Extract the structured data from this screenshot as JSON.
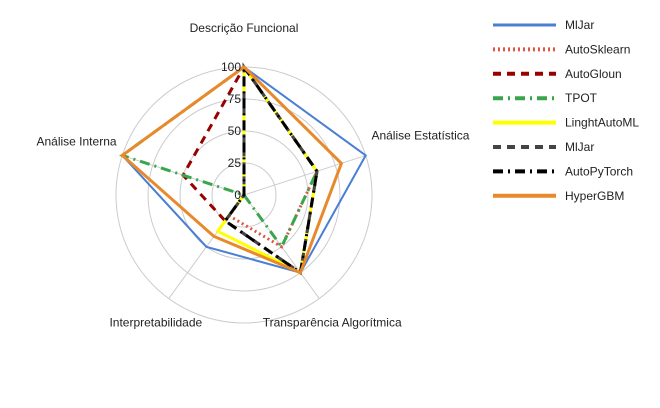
{
  "chart_data": {
    "type": "radar",
    "title": "",
    "axes": [
      "Descrição Funcional",
      "Análise Estatística",
      "Transparência Algorítmica",
      "Interpretabilidade",
      "Análise Interna"
    ],
    "rlim": [
      0,
      100
    ],
    "ticks": [
      0,
      25,
      50,
      75,
      100
    ],
    "grid": true,
    "legend_position": "right",
    "series": [
      {
        "name": "MlJar",
        "values": [
          100,
          100,
          75,
          50,
          100
        ],
        "color": "#4a7fd4",
        "dash": "solid",
        "width": 2
      },
      {
        "name": "AutoSklearn",
        "values": [
          100,
          60,
          50,
          20,
          0
        ],
        "color": "#e05545",
        "dash": "dot",
        "width": 3
      },
      {
        "name": "AutoGloun",
        "values": [
          100,
          60,
          75,
          25,
          50
        ],
        "color": "#990000",
        "dash": "dash",
        "width": 3
      },
      {
        "name": "TPOT",
        "values": [
          100,
          60,
          50,
          0,
          100
        ],
        "color": "#3aa64c",
        "dash": "dashdot",
        "width": 3
      },
      {
        "name": "LinghtAutoML",
        "values": [
          100,
          60,
          75,
          35,
          0
        ],
        "color": "#ffff00",
        "dash": "solid",
        "width": 3
      },
      {
        "name": "MlJar",
        "values": [
          100,
          60,
          75,
          25,
          0
        ],
        "color": "#444444",
        "dash": "dash",
        "width": 3
      },
      {
        "name": "AutoPyTorch",
        "values": [
          100,
          60,
          75,
          25,
          0
        ],
        "color": "#000000",
        "dash": "dashdot",
        "width": 3
      },
      {
        "name": "HyperGBM",
        "values": [
          100,
          80,
          75,
          40,
          100
        ],
        "color": "#e8892c",
        "dash": "solid",
        "width": 3
      }
    ]
  }
}
